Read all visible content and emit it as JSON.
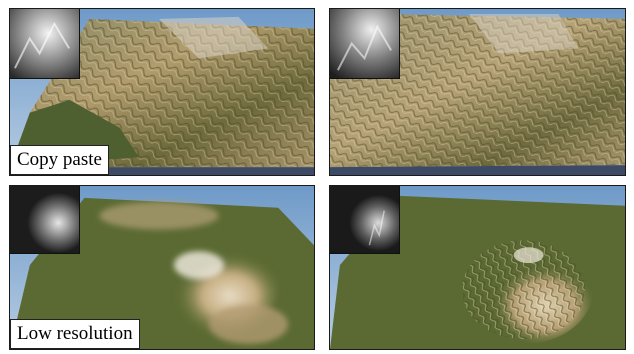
{
  "panels": [
    {
      "id": "copy-paste-result",
      "label": "Copy paste"
    },
    {
      "id": "copy-paste-reference",
      "label": ""
    },
    {
      "id": "low-resolution-result",
      "label": "Low resolution"
    },
    {
      "id": "low-resolution-reference",
      "label": ""
    }
  ],
  "colors": {
    "sky": "#8fb3d6",
    "grass": "#5b6a32",
    "rock": "#c9b488",
    "peak": "#e8e2d6"
  }
}
